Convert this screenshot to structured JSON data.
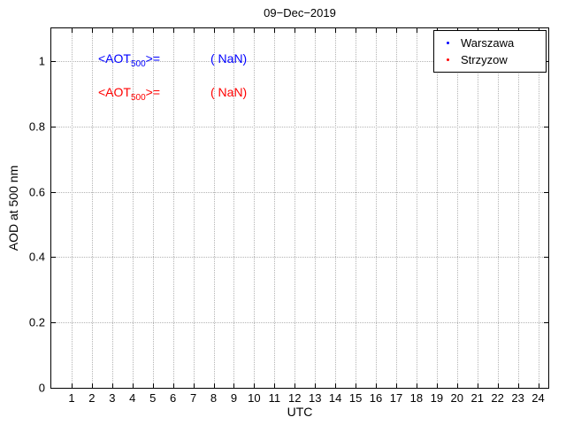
{
  "chart_data": {
    "type": "scatter",
    "title": "09−Dec−2019",
    "xlabel": "UTC",
    "ylabel": "AOD at 500 nm",
    "xlim": [
      0,
      24.5
    ],
    "ylim": [
      0,
      1.1
    ],
    "xticks": [
      1,
      2,
      3,
      4,
      5,
      6,
      7,
      8,
      9,
      10,
      11,
      12,
      13,
      14,
      15,
      16,
      17,
      18,
      19,
      20,
      21,
      22,
      23,
      24
    ],
    "xtick_labels": [
      "1",
      "2",
      "3",
      "4",
      "5",
      "6",
      "7",
      "8",
      "9",
      "10",
      "11",
      "12",
      "13",
      "14",
      "15",
      "16",
      "17",
      "18",
      "19",
      "20",
      "21",
      "22",
      "23",
      "24"
    ],
    "yticks": [
      0,
      0.2,
      0.4,
      0.6,
      0.8,
      1
    ],
    "ytick_labels": [
      "0",
      "0.2",
      "0.4",
      "0.6",
      "0.8",
      "1"
    ],
    "grid": true,
    "legend_position": "top-right",
    "series": [
      {
        "name": "Warszawa",
        "color": "#0000ff",
        "marker": "dot",
        "x": [],
        "y": [],
        "mean_aot500": "NaN"
      },
      {
        "name": "Strzyzow",
        "color": "#ff0000",
        "marker": "dot",
        "x": [],
        "y": [],
        "mean_aot500": "NaN"
      }
    ]
  },
  "annotations": [
    {
      "prefix": "<AOT",
      "sub": "500",
      "suffix": ">=",
      "value": "( NaN)",
      "color": "#0000ff"
    },
    {
      "prefix": "<AOT",
      "sub": "500",
      "suffix": ">=",
      "value": "( NaN)",
      "color": "#ff0000"
    }
  ],
  "legend": {
    "items": [
      {
        "label": "Warszawa",
        "color": "#0000ff"
      },
      {
        "label": "Strzyzow",
        "color": "#ff0000"
      }
    ]
  }
}
